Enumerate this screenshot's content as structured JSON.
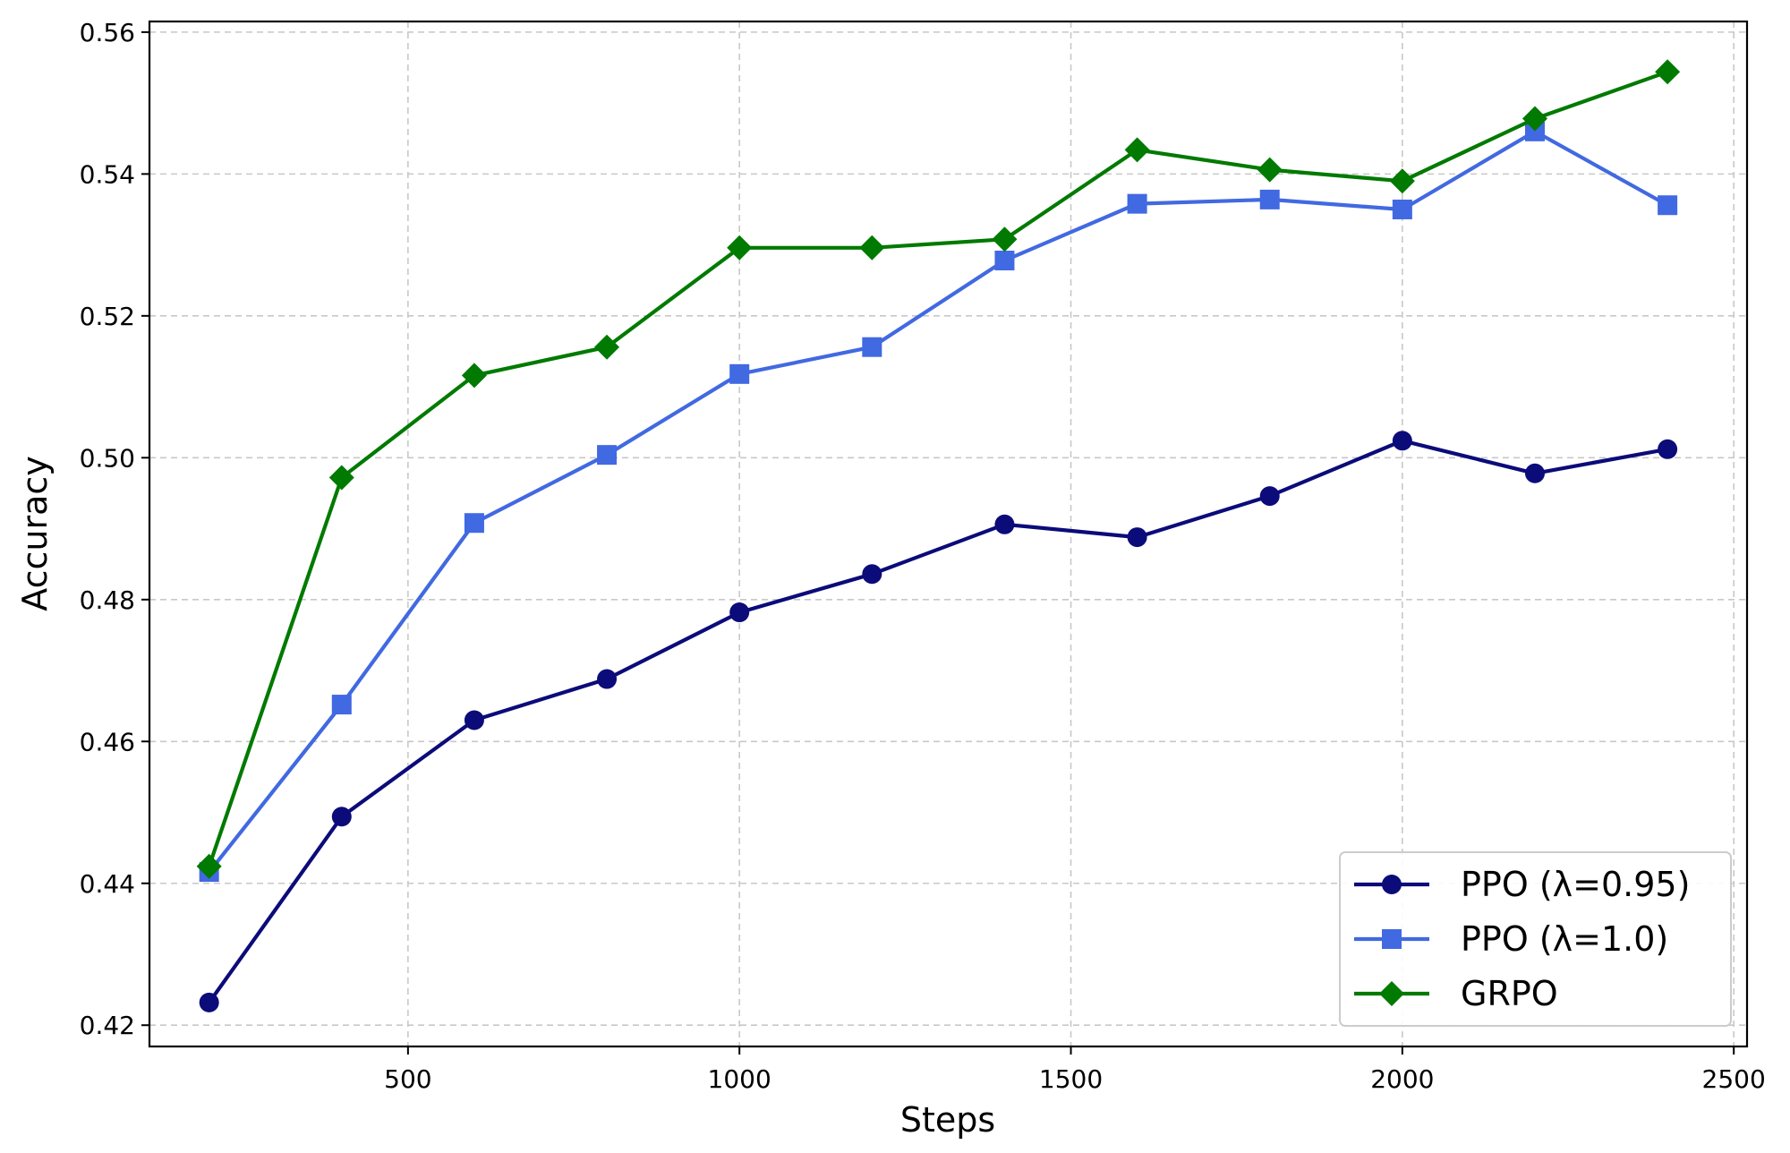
{
  "chart_data": {
    "type": "line",
    "title": "",
    "xlabel": "Steps",
    "ylabel": "Accuracy",
    "xlim": [
      110,
      2520
    ],
    "ylim": [
      0.417,
      0.5615
    ],
    "x_ticks": [
      500,
      1000,
      1500,
      2000,
      2500
    ],
    "x_tick_labels": [
      "500",
      "1000",
      "1500",
      "2000",
      "2500"
    ],
    "y_ticks": [
      0.42,
      0.44,
      0.46,
      0.48,
      0.5,
      0.52,
      0.54,
      0.56
    ],
    "y_tick_labels": [
      "0.42",
      "0.44",
      "0.46",
      "0.48",
      "0.50",
      "0.52",
      "0.54",
      "0.56"
    ],
    "grid": true,
    "legend_position": "bottom-right",
    "x": [
      200,
      400,
      600,
      800,
      1000,
      1200,
      1400,
      1600,
      1800,
      2000,
      2200,
      2400
    ],
    "series": [
      {
        "name": "PPO (λ=0.95)",
        "color": "#0b0b7a",
        "marker": "circle",
        "values": [
          0.4232,
          0.4494,
          0.463,
          0.4688,
          0.4782,
          0.4836,
          0.4906,
          0.4888,
          0.4946,
          0.5024,
          0.4978,
          0.5012
        ]
      },
      {
        "name": "PPO (λ=1.0)",
        "color": "#4169e1",
        "marker": "square",
        "values": [
          0.4416,
          0.4652,
          0.4908,
          0.5004,
          0.5118,
          0.5156,
          0.5278,
          0.5358,
          0.5364,
          0.535,
          0.546,
          0.5356
        ]
      },
      {
        "name": "GRPO",
        "color": "#007a00",
        "marker": "diamond",
        "values": [
          0.4424,
          0.4972,
          0.5116,
          0.5156,
          0.5296,
          0.5296,
          0.5308,
          0.5434,
          0.5406,
          0.539,
          0.5478,
          0.5544
        ]
      }
    ]
  }
}
